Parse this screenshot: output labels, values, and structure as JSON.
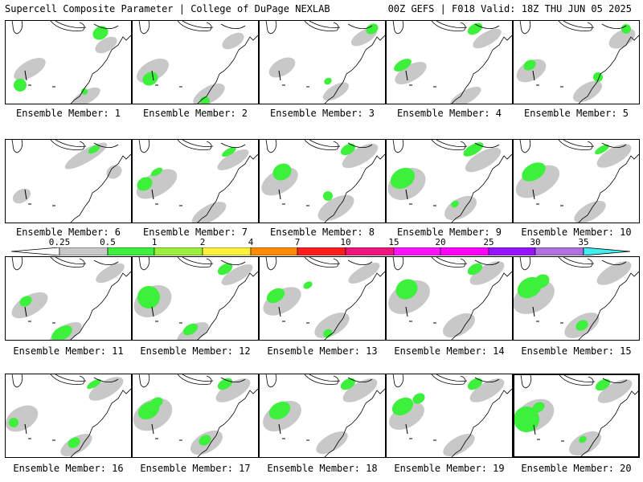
{
  "header": {
    "title": "Supercell Composite Parameter | College of DuPage NEXLAB",
    "valid": "00Z GEFS | F018 Valid: 18Z THU JUN 05 2025"
  },
  "legend": {
    "ticks": [
      "0.25",
      "0.5",
      "1",
      "2",
      "4",
      "7",
      "10",
      "15",
      "20",
      "25",
      "30",
      "35"
    ],
    "colors": [
      "#c8c8c8",
      "#3cf03c",
      "#9cf03c",
      "#fff03c",
      "#ff8c00",
      "#ff1e1e",
      "#f0147e",
      "#ff14ff",
      "#ff00ff",
      "#9614ff",
      "#b070e0",
      "#40f0f0"
    ]
  },
  "panel_label_prefix": "Ensemble Member: ",
  "members": [
    {
      "label": "Ensemble Member: 1",
      "gray": [
        [
          30,
          60,
          22,
          10
        ],
        [
          100,
          95,
          20,
          8
        ],
        [
          125,
          30,
          15,
          8
        ]
      ],
      "green": [
        [
          18,
          80,
          8,
          8
        ],
        [
          118,
          15,
          10,
          8
        ],
        [
          98,
          88,
          4,
          4
        ]
      ]
    },
    {
      "label": "Ensemble Member: 2",
      "gray": [
        [
          25,
          62,
          22,
          12
        ],
        [
          95,
          92,
          22,
          10
        ],
        [
          125,
          25,
          15,
          8
        ]
      ],
      "green": [
        [
          22,
          72,
          10,
          8
        ],
        [
          90,
          100,
          6,
          6
        ]
      ]
    },
    {
      "label": "Ensemble Member: 3",
      "gray": [
        [
          28,
          58,
          18,
          10
        ],
        [
          95,
          88,
          18,
          8
        ],
        [
          130,
          20,
          18,
          8
        ]
      ],
      "green": [
        [
          85,
          75,
          5,
          4
        ],
        [
          140,
          10,
          8,
          6
        ]
      ]
    },
    {
      "label": "Ensemble Member: 4",
      "gray": [
        [
          30,
          65,
          22,
          10
        ],
        [
          98,
          95,
          22,
          8
        ],
        [
          125,
          22,
          20,
          8
        ]
      ],
      "green": [
        [
          20,
          55,
          12,
          6
        ],
        [
          110,
          10,
          10,
          6
        ]
      ]
    },
    {
      "label": "Ensemble Member: 5",
      "gray": [
        [
          22,
          62,
          20,
          12
        ],
        [
          92,
          88,
          20,
          10
        ],
        [
          135,
          22,
          18,
          10
        ]
      ],
      "green": [
        [
          20,
          55,
          8,
          6
        ],
        [
          105,
          70,
          6,
          6
        ],
        [
          140,
          10,
          6,
          6
        ]
      ]
    },
    {
      "label": "Ensemble Member: 6",
      "gray": [
        [
          20,
          70,
          12,
          8
        ],
        [
          100,
          20,
          30,
          8
        ],
        [
          135,
          40,
          10,
          8
        ]
      ],
      "green": [
        [
          110,
          12,
          8,
          4
        ]
      ]
    },
    {
      "label": "Ensemble Member: 7",
      "gray": [
        [
          30,
          55,
          28,
          14
        ],
        [
          95,
          92,
          24,
          10
        ],
        [
          125,
          25,
          22,
          8
        ]
      ],
      "green": [
        [
          15,
          55,
          10,
          8
        ],
        [
          30,
          40,
          8,
          4
        ],
        [
          120,
          15,
          10,
          4
        ]
      ]
    },
    {
      "label": "Ensemble Member: 8",
      "gray": [
        [
          25,
          52,
          25,
          14
        ],
        [
          95,
          85,
          25,
          12
        ],
        [
          125,
          20,
          25,
          10
        ]
      ],
      "green": [
        [
          28,
          40,
          12,
          10
        ],
        [
          85,
          70,
          6,
          6
        ],
        [
          110,
          12,
          10,
          6
        ]
      ]
    },
    {
      "label": "Ensemble Member: 9",
      "gray": [
        [
          25,
          55,
          25,
          18
        ],
        [
          92,
          85,
          22,
          12
        ],
        [
          120,
          25,
          25,
          10
        ]
      ],
      "green": [
        [
          20,
          48,
          16,
          12
        ],
        [
          85,
          80,
          5,
          4
        ],
        [
          108,
          12,
          14,
          6
        ]
      ]
    },
    {
      "label": "Ensemble Member: 10",
      "gray": [
        [
          30,
          52,
          30,
          16
        ],
        [
          95,
          90,
          22,
          10
        ],
        [
          125,
          20,
          24,
          10
        ]
      ],
      "green": [
        [
          25,
          40,
          16,
          10
        ],
        [
          110,
          12,
          10,
          4
        ]
      ]
    },
    {
      "label": "Ensemble Member: 11",
      "gray": [
        [
          30,
          60,
          25,
          12
        ],
        [
          75,
          95,
          22,
          10
        ],
        [
          130,
          20,
          20,
          8
        ]
      ],
      "green": [
        [
          25,
          55,
          8,
          6
        ],
        [
          70,
          95,
          14,
          8
        ]
      ]
    },
    {
      "label": "Ensemble Member: 12",
      "gray": [
        [
          25,
          55,
          25,
          18
        ],
        [
          75,
          95,
          22,
          10
        ],
        [
          130,
          22,
          22,
          8
        ]
      ],
      "green": [
        [
          20,
          50,
          14,
          14
        ],
        [
          72,
          90,
          10,
          6
        ],
        [
          115,
          15,
          10,
          6
        ]
      ]
    },
    {
      "label": "Ensemble Member: 13",
      "gray": [
        [
          28,
          55,
          26,
          14
        ],
        [
          90,
          85,
          24,
          12
        ],
        [
          130,
          20,
          22,
          8
        ]
      ],
      "green": [
        [
          20,
          48,
          12,
          8
        ],
        [
          60,
          35,
          6,
          4
        ],
        [
          85,
          95,
          6,
          5
        ]
      ]
    },
    {
      "label": "Ensemble Member: 14",
      "gray": [
        [
          28,
          50,
          28,
          18
        ],
        [
          90,
          85,
          22,
          12
        ],
        [
          125,
          20,
          24,
          10
        ]
      ],
      "green": [
        [
          25,
          40,
          14,
          12
        ],
        [
          110,
          15,
          10,
          6
        ]
      ]
    },
    {
      "label": "Ensemble Member: 15",
      "gray": [
        [
          25,
          50,
          28,
          18
        ],
        [
          85,
          85,
          24,
          12
        ],
        [
          125,
          20,
          24,
          10
        ]
      ],
      "green": [
        [
          20,
          38,
          16,
          12
        ],
        [
          35,
          30,
          10,
          8
        ],
        [
          85,
          85,
          8,
          6
        ]
      ]
    },
    {
      "label": "Ensemble Member: 16",
      "gray": [
        [
          20,
          55,
          22,
          14
        ],
        [
          88,
          88,
          22,
          10
        ],
        [
          125,
          18,
          24,
          10
        ]
      ],
      "green": [
        [
          10,
          60,
          6,
          6
        ],
        [
          85,
          85,
          8,
          6
        ],
        [
          110,
          12,
          10,
          4
        ]
      ]
    },
    {
      "label": "Ensemble Member: 17",
      "gray": [
        [
          25,
          50,
          26,
          18
        ],
        [
          92,
          85,
          22,
          12
        ],
        [
          125,
          20,
          24,
          10
        ]
      ],
      "green": [
        [
          20,
          45,
          14,
          10
        ],
        [
          30,
          35,
          8,
          6
        ],
        [
          90,
          82,
          8,
          6
        ],
        [
          115,
          12,
          10,
          6
        ]
      ]
    },
    {
      "label": "Ensemble Member: 18",
      "gray": [
        [
          28,
          52,
          26,
          16
        ],
        [
          90,
          85,
          22,
          10
        ],
        [
          125,
          20,
          24,
          10
        ]
      ],
      "green": [
        [
          25,
          45,
          14,
          10
        ],
        [
          110,
          12,
          10,
          6
        ]
      ]
    },
    {
      "label": "Ensemble Member: 19",
      "gray": [
        [
          25,
          52,
          24,
          14
        ],
        [
          90,
          88,
          22,
          10
        ],
        [
          125,
          20,
          24,
          10
        ]
      ],
      "green": [
        [
          20,
          40,
          14,
          10
        ],
        [
          40,
          30,
          8,
          6
        ],
        [
          110,
          12,
          10,
          6
        ]
      ]
    },
    {
      "label": "Ensemble Member: 20",
      "gray": [
        [
          25,
          50,
          26,
          18
        ],
        [
          88,
          85,
          22,
          12
        ],
        [
          125,
          20,
          24,
          10
        ]
      ],
      "green": [
        [
          15,
          55,
          16,
          16
        ],
        [
          30,
          40,
          8,
          6
        ],
        [
          85,
          80,
          5,
          4
        ],
        [
          110,
          12,
          10,
          6
        ]
      ]
    }
  ]
}
